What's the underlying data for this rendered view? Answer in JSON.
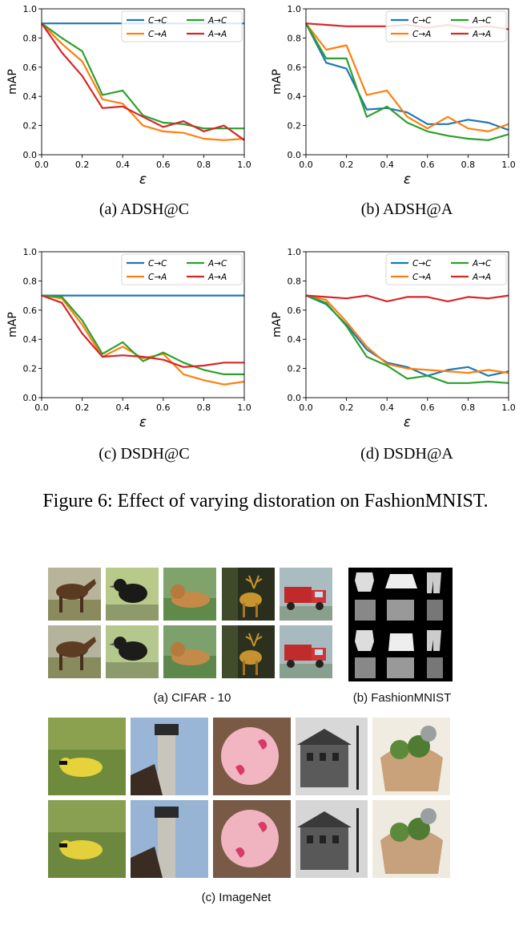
{
  "figure_caption": "Figure 6: Effect of varying distoration on FashionMNIST.",
  "subcaptions": [
    "(a)  ADSH@C",
    "(b)  ADSH@A",
    "(c)  DSDH@C",
    "(d)  DSDH@A"
  ],
  "series_colors": {
    "C→C": "#1f77b4",
    "C→A": "#ff7f0e",
    "A→C": "#2ca02c",
    "A→A": "#d62728"
  },
  "chart_data": [
    {
      "type": "line",
      "subcaption": "(a)  ADSH@C",
      "xlabel": "ε",
      "ylabel": "mAP",
      "xlim": [
        0,
        1
      ],
      "ylim": [
        0,
        1
      ],
      "xticks": [
        "0.0",
        "0.2",
        "0.4",
        "0.6",
        "0.8",
        "1.0"
      ],
      "yticks": [
        "0.0",
        "0.2",
        "0.4",
        "0.6",
        "0.8",
        "1.0"
      ],
      "legend_position": "top-right",
      "x": [
        0,
        0.1,
        0.2,
        0.3,
        0.4,
        0.5,
        0.6,
        0.7,
        0.8,
        0.9,
        1.0
      ],
      "series": [
        {
          "name": "C→C",
          "values": [
            0.9,
            0.9,
            0.9,
            0.9,
            0.9,
            0.9,
            0.9,
            0.9,
            0.9,
            0.9,
            0.9
          ]
        },
        {
          "name": "C→A",
          "values": [
            0.9,
            0.76,
            0.64,
            0.38,
            0.35,
            0.2,
            0.16,
            0.15,
            0.11,
            0.1,
            0.11
          ]
        },
        {
          "name": "A→C",
          "values": [
            0.9,
            0.8,
            0.71,
            0.41,
            0.44,
            0.27,
            0.22,
            0.21,
            0.18,
            0.18,
            0.18
          ]
        },
        {
          "name": "A→A",
          "values": [
            0.9,
            0.7,
            0.54,
            0.32,
            0.33,
            0.26,
            0.19,
            0.23,
            0.16,
            0.2,
            0.1
          ]
        }
      ]
    },
    {
      "type": "line",
      "subcaption": "(b)  ADSH@A",
      "xlabel": "ε",
      "ylabel": "mAP",
      "xlim": [
        0,
        1
      ],
      "ylim": [
        0,
        1
      ],
      "xticks": [
        "0.0",
        "0.2",
        "0.4",
        "0.6",
        "0.8",
        "1.0"
      ],
      "yticks": [
        "0.0",
        "0.2",
        "0.4",
        "0.6",
        "0.8",
        "1.0"
      ],
      "legend_position": "top-right",
      "x": [
        0,
        0.1,
        0.2,
        0.3,
        0.4,
        0.5,
        0.6,
        0.7,
        0.8,
        0.9,
        1.0
      ],
      "series": [
        {
          "name": "C→C",
          "values": [
            0.9,
            0.63,
            0.59,
            0.31,
            0.32,
            0.29,
            0.21,
            0.21,
            0.24,
            0.22,
            0.17
          ]
        },
        {
          "name": "C→A",
          "values": [
            0.9,
            0.72,
            0.75,
            0.41,
            0.44,
            0.26,
            0.18,
            0.26,
            0.18,
            0.16,
            0.21
          ]
        },
        {
          "name": "A→C",
          "values": [
            0.9,
            0.66,
            0.66,
            0.26,
            0.33,
            0.22,
            0.16,
            0.13,
            0.11,
            0.1,
            0.14
          ]
        },
        {
          "name": "A→A",
          "values": [
            0.9,
            0.89,
            0.88,
            0.88,
            0.88,
            0.89,
            0.87,
            0.89,
            0.87,
            0.88,
            0.86
          ]
        }
      ]
    },
    {
      "type": "line",
      "subcaption": "(c)  DSDH@C",
      "xlabel": "ε",
      "ylabel": "mAP",
      "xlim": [
        0,
        1
      ],
      "ylim": [
        0,
        1
      ],
      "xticks": [
        "0.0",
        "0.2",
        "0.4",
        "0.6",
        "0.8",
        "1.0"
      ],
      "yticks": [
        "0.0",
        "0.2",
        "0.4",
        "0.6",
        "0.8",
        "1.0"
      ],
      "legend_position": "top-right",
      "x": [
        0,
        0.1,
        0.2,
        0.3,
        0.4,
        0.5,
        0.6,
        0.7,
        0.8,
        0.9,
        1.0
      ],
      "series": [
        {
          "name": "C→C",
          "values": [
            0.7,
            0.7,
            0.7,
            0.7,
            0.7,
            0.7,
            0.7,
            0.7,
            0.7,
            0.7,
            0.7
          ]
        },
        {
          "name": "C→A",
          "values": [
            0.7,
            0.68,
            0.5,
            0.28,
            0.35,
            0.27,
            0.3,
            0.16,
            0.12,
            0.09,
            0.11
          ]
        },
        {
          "name": "A→C",
          "values": [
            0.7,
            0.69,
            0.53,
            0.3,
            0.38,
            0.25,
            0.31,
            0.24,
            0.19,
            0.16,
            0.16
          ]
        },
        {
          "name": "A→A",
          "values": [
            0.7,
            0.65,
            0.44,
            0.28,
            0.29,
            0.28,
            0.26,
            0.21,
            0.22,
            0.24,
            0.24
          ]
        }
      ]
    },
    {
      "type": "line",
      "subcaption": "(d)  DSDH@A",
      "xlabel": "ε",
      "ylabel": "mAP",
      "xlim": [
        0,
        1
      ],
      "ylim": [
        0,
        1
      ],
      "xticks": [
        "0.0",
        "0.2",
        "0.4",
        "0.6",
        "0.8",
        "1.0"
      ],
      "yticks": [
        "0.0",
        "0.2",
        "0.4",
        "0.6",
        "0.8",
        "1.0"
      ],
      "legend_position": "top-right",
      "x": [
        0,
        0.1,
        0.2,
        0.3,
        0.4,
        0.5,
        0.6,
        0.7,
        0.8,
        0.9,
        1.0
      ],
      "series": [
        {
          "name": "C→C",
          "values": [
            0.7,
            0.64,
            0.5,
            0.33,
            0.24,
            0.21,
            0.15,
            0.19,
            0.21,
            0.15,
            0.18
          ]
        },
        {
          "name": "C→A",
          "values": [
            0.7,
            0.67,
            0.52,
            0.35,
            0.23,
            0.2,
            0.19,
            0.18,
            0.17,
            0.19,
            0.17
          ]
        },
        {
          "name": "A→C",
          "values": [
            0.7,
            0.65,
            0.49,
            0.28,
            0.22,
            0.13,
            0.15,
            0.1,
            0.1,
            0.11,
            0.1
          ]
        },
        {
          "name": "A→A",
          "values": [
            0.7,
            0.69,
            0.68,
            0.7,
            0.66,
            0.69,
            0.69,
            0.66,
            0.69,
            0.68,
            0.7
          ]
        }
      ]
    }
  ],
  "image_panels": {
    "cifar_caption": "(a) CIFAR - 10",
    "fashion_caption": "(b) FashionMNIST",
    "imagenet_caption": "(c) ImageNet",
    "cifar_images": [
      "horse",
      "bird",
      "dog",
      "deer",
      "truck"
    ],
    "imagenet_images": [
      "goldfinch",
      "lighthouse",
      "piggy bank",
      "street house",
      "planter"
    ]
  }
}
